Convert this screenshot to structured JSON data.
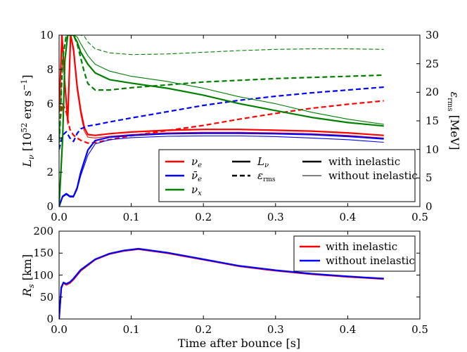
{
  "chart_data": [
    {
      "type": "line",
      "panel": "top",
      "xlim": [
        0,
        0.5
      ],
      "ylim_left": [
        0,
        10
      ],
      "ylim_right": [
        0,
        30
      ],
      "ylabel_left": "L_ν [10^52 erg s^-1]",
      "ylabel_right": "ε_rms [MeV]",
      "x_ticks": [
        "0.0",
        "0.1",
        "0.2",
        "0.3",
        "0.4",
        "0.5"
      ],
      "y_ticks_left": [
        "0",
        "2",
        "4",
        "6",
        "8",
        "10"
      ],
      "y_ticks_right": [
        "0",
        "5",
        "10",
        "15",
        "20",
        "25",
        "30"
      ],
      "legend": {
        "species": [
          "νe",
          "ν̄e",
          "νx"
        ],
        "quantities": [
          "Lν",
          "εrms"
        ],
        "runs": [
          "with inelastic",
          "without inelastic"
        ],
        "colors": {
          "nu_e": "#ff0000",
          "nu_e_bar": "#0000ff",
          "nu_x": "#008000"
        }
      },
      "series": [
        {
          "name": "nu_e L with",
          "color": "#ff0000",
          "style": "solid",
          "width": 2.2,
          "axis": "left",
          "x": [
            0.0,
            0.004,
            0.008,
            0.012,
            0.016,
            0.02,
            0.025,
            0.03,
            0.035,
            0.04,
            0.05,
            0.07,
            0.1,
            0.15,
            0.2,
            0.25,
            0.3,
            0.35,
            0.4,
            0.45
          ],
          "y": [
            5.5,
            10,
            7.2,
            5.0,
            10,
            9.2,
            7.0,
            5.6,
            4.6,
            4.2,
            4.15,
            4.25,
            4.35,
            4.45,
            4.5,
            4.5,
            4.45,
            4.4,
            4.3,
            4.15
          ]
        },
        {
          "name": "nu_e L without",
          "color": "#ff0000",
          "style": "solid",
          "width": 1.1,
          "axis": "left",
          "x": [
            0.0,
            0.004,
            0.008,
            0.012,
            0.016,
            0.02,
            0.025,
            0.03,
            0.035,
            0.04,
            0.05,
            0.07,
            0.1,
            0.15,
            0.2,
            0.25,
            0.3,
            0.35,
            0.4,
            0.45
          ],
          "y": [
            5.3,
            10,
            7.0,
            4.8,
            10,
            9.0,
            6.8,
            5.4,
            4.4,
            4.05,
            4.0,
            4.1,
            4.2,
            4.3,
            4.33,
            4.33,
            4.3,
            4.25,
            4.15,
            4.0
          ]
        },
        {
          "name": "nu_e eps with",
          "color": "#ff0000",
          "style": "dashed",
          "width": 2.2,
          "axis": "right",
          "x": [
            0.0,
            0.005,
            0.01,
            0.015,
            0.02,
            0.025,
            0.03,
            0.04,
            0.05,
            0.07,
            0.1,
            0.15,
            0.2,
            0.25,
            0.3,
            0.35,
            0.4,
            0.45
          ],
          "y": [
            14,
            18,
            16.5,
            13.5,
            12.5,
            12.0,
            11.6,
            11.1,
            11.2,
            11.7,
            12.4,
            13.3,
            14.2,
            15.3,
            16.3,
            17.2,
            17.9,
            18.5
          ]
        },
        {
          "name": "nu_e_bar L with",
          "color": "#0000ff",
          "style": "solid",
          "width": 2.2,
          "axis": "left",
          "x": [
            0.0,
            0.005,
            0.01,
            0.015,
            0.02,
            0.025,
            0.03,
            0.04,
            0.05,
            0.07,
            0.1,
            0.15,
            0.2,
            0.25,
            0.3,
            0.35,
            0.4,
            0.45
          ],
          "y": [
            0.0,
            0.6,
            0.75,
            0.6,
            0.6,
            1.1,
            2.0,
            3.3,
            3.85,
            4.05,
            4.15,
            4.25,
            4.28,
            4.28,
            4.25,
            4.2,
            4.1,
            3.95
          ]
        },
        {
          "name": "nu_e_bar L without",
          "color": "#0000ff",
          "style": "solid",
          "width": 1.1,
          "axis": "left",
          "x": [
            0.0,
            0.005,
            0.01,
            0.015,
            0.02,
            0.025,
            0.03,
            0.04,
            0.05,
            0.07,
            0.1,
            0.15,
            0.2,
            0.25,
            0.3,
            0.35,
            0.4,
            0.45
          ],
          "y": [
            0.0,
            0.55,
            0.7,
            0.55,
            0.55,
            1.0,
            1.8,
            3.0,
            3.65,
            3.9,
            4.02,
            4.1,
            4.12,
            4.12,
            4.08,
            4.0,
            3.9,
            3.75
          ]
        },
        {
          "name": "nu_e_bar eps with",
          "color": "#0000ff",
          "style": "dashed",
          "width": 2.2,
          "axis": "right",
          "x": [
            0.0,
            0.005,
            0.01,
            0.015,
            0.02,
            0.025,
            0.03,
            0.04,
            0.05,
            0.07,
            0.1,
            0.15,
            0.2,
            0.25,
            0.3,
            0.35,
            0.4,
            0.45
          ],
          "y": [
            10,
            12.5,
            13.1,
            12.0,
            11.4,
            12.8,
            13.6,
            14.1,
            14.3,
            14.8,
            15.5,
            16.6,
            17.7,
            18.6,
            19.3,
            19.9,
            20.4,
            20.9
          ]
        },
        {
          "name": "nu_x L with",
          "color": "#008000",
          "style": "solid",
          "width": 2.2,
          "axis": "left",
          "x": [
            0.0,
            0.005,
            0.008,
            0.012,
            0.02,
            0.025,
            0.03,
            0.04,
            0.05,
            0.07,
            0.1,
            0.15,
            0.2,
            0.25,
            0.3,
            0.35,
            0.4,
            0.45
          ],
          "y": [
            0.0,
            4.0,
            8.5,
            10,
            10,
            9.6,
            9.0,
            8.3,
            7.8,
            7.4,
            7.2,
            6.9,
            6.5,
            6.0,
            5.6,
            5.2,
            4.9,
            4.7
          ]
        },
        {
          "name": "nu_x L without",
          "color": "#008000",
          "style": "solid",
          "width": 1.1,
          "axis": "left",
          "x": [
            0.0,
            0.005,
            0.008,
            0.012,
            0.02,
            0.025,
            0.03,
            0.04,
            0.05,
            0.07,
            0.1,
            0.15,
            0.2,
            0.25,
            0.3,
            0.35,
            0.4,
            0.45
          ],
          "y": [
            0.0,
            4.2,
            8.7,
            10,
            10,
            9.9,
            9.5,
            8.8,
            8.3,
            7.9,
            7.6,
            7.3,
            6.9,
            6.4,
            6.0,
            5.5,
            5.1,
            4.8
          ]
        },
        {
          "name": "nu_x eps with",
          "color": "#008000",
          "style": "dashed",
          "width": 2.2,
          "axis": "right",
          "x": [
            0.0,
            0.005,
            0.01,
            0.015,
            0.02,
            0.025,
            0.03,
            0.035,
            0.04,
            0.05,
            0.07,
            0.1,
            0.15,
            0.2,
            0.25,
            0.3,
            0.35,
            0.4,
            0.45
          ],
          "y": [
            10,
            26,
            30,
            30,
            30,
            28.5,
            26,
            23.5,
            21.5,
            20.4,
            20.4,
            20.8,
            21.3,
            21.8,
            22.1,
            22.4,
            22.6,
            22.8,
            23.0
          ]
        },
        {
          "name": "nu_x eps without",
          "color": "#008000",
          "style": "dashed",
          "width": 1.1,
          "axis": "right",
          "x": [
            0.0,
            0.005,
            0.01,
            0.015,
            0.02,
            0.025,
            0.03,
            0.035,
            0.04,
            0.05,
            0.07,
            0.1,
            0.15,
            0.2,
            0.25,
            0.3,
            0.35,
            0.4,
            0.45
          ],
          "y": [
            10,
            26,
            30,
            30,
            30,
            30,
            30,
            29.8,
            28.8,
            27.6,
            26.9,
            26.6,
            26.7,
            27.0,
            27.3,
            27.5,
            27.6,
            27.6,
            27.5
          ]
        }
      ]
    },
    {
      "type": "line",
      "panel": "bottom",
      "xlim": [
        0,
        0.5
      ],
      "ylim": [
        0,
        200
      ],
      "xlabel": "Time after bounce [s]",
      "ylabel": "R_s [km]",
      "x_ticks": [
        "0.0",
        "0.1",
        "0.2",
        "0.3",
        "0.4",
        "0.5"
      ],
      "y_ticks": [
        "0",
        "50",
        "100",
        "150",
        "200"
      ],
      "legend": [
        "with inelastic",
        "without inelastic"
      ],
      "series": [
        {
          "name": "with inelastic",
          "color": "#ff0000",
          "x": [
            0.0,
            0.003,
            0.006,
            0.01,
            0.015,
            0.02,
            0.03,
            0.05,
            0.07,
            0.09,
            0.11,
            0.15,
            0.2,
            0.25,
            0.3,
            0.35,
            0.4,
            0.45
          ],
          "y": [
            0,
            70,
            82,
            78,
            82,
            90,
            110,
            135,
            148,
            155,
            159,
            150,
            135,
            120,
            110,
            102,
            96,
            91
          ]
        },
        {
          "name": "without inelastic",
          "color": "#0000ff",
          "x": [
            0.0,
            0.003,
            0.006,
            0.01,
            0.015,
            0.02,
            0.03,
            0.05,
            0.07,
            0.09,
            0.11,
            0.15,
            0.2,
            0.25,
            0.3,
            0.35,
            0.4,
            0.45
          ],
          "y": [
            0,
            72,
            83,
            80,
            84,
            92,
            112,
            136,
            149,
            156,
            160,
            151,
            136,
            121,
            111,
            103,
            97,
            92
          ]
        }
      ]
    }
  ]
}
